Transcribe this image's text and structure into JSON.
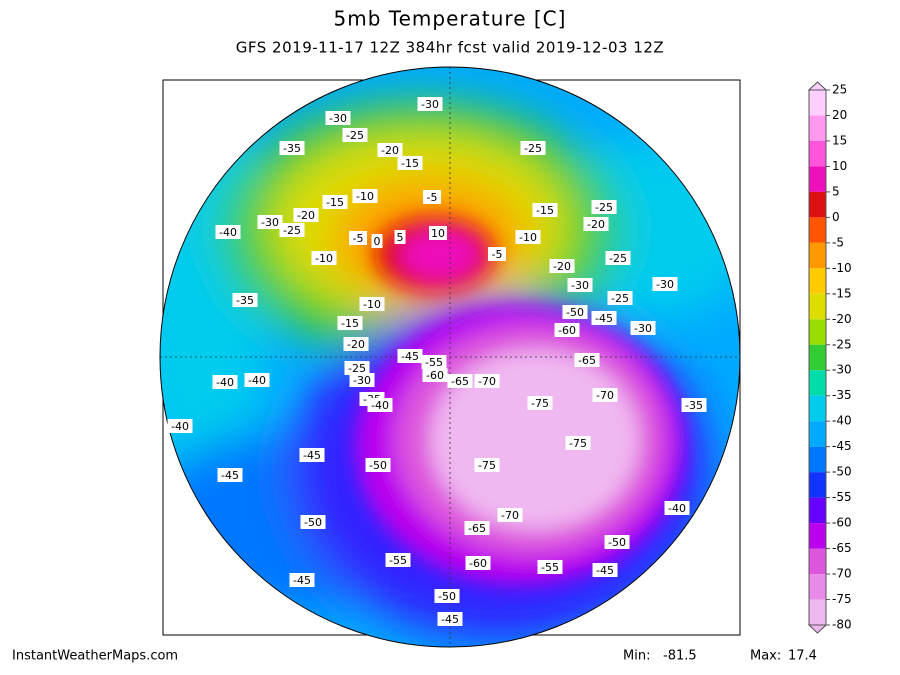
{
  "header": {
    "title": "5mb Temperature [C]",
    "subtitle": "GFS 2019-11-17 12Z 384hr fcst valid 2019-12-03 12Z"
  },
  "colorbar": {
    "ticks": [
      25,
      20,
      15,
      10,
      5,
      0,
      -5,
      -10,
      -15,
      -20,
      -25,
      -30,
      -35,
      -40,
      -45,
      -50,
      -55,
      -60,
      -65,
      -70,
      -75,
      -80
    ],
    "colors": [
      "#ffd0ff",
      "#ff99f0",
      "#ff55dd",
      "#ee11bb",
      "#dd1111",
      "#ff5500",
      "#ff9900",
      "#ffcc00",
      "#dddd00",
      "#99dd00",
      "#33cc33",
      "#00ddaa",
      "#00ccee",
      "#00aaff",
      "#0077ff",
      "#1133ff",
      "#6600ff",
      "#bb00ee",
      "#dd55dd",
      "#e88be8",
      "#f0b8f0"
    ]
  },
  "contour_labels": [
    -30,
    -30,
    -25,
    -35,
    -20,
    -15,
    -25,
    -10,
    -5,
    -15,
    -20,
    -30,
    -25,
    -40,
    -5,
    0,
    5,
    10,
    -15,
    -25,
    -20,
    -10,
    -5,
    -25,
    -10,
    -20,
    -30,
    -30,
    -25,
    -35,
    -10,
    -50,
    -45,
    -30,
    -60,
    -15,
    -20,
    -45,
    -55,
    -65,
    -25,
    -60,
    -65,
    -70,
    -30,
    -40,
    -40,
    -70,
    -35,
    -40,
    -75,
    -35,
    -40,
    -75,
    -45,
    -50,
    -75,
    -45,
    -40,
    -70,
    -50,
    -65,
    -50,
    -55,
    -60,
    -55,
    -45,
    -45,
    -50,
    -45
  ],
  "footer": {
    "source": "InstantWeatherMaps.com",
    "min_label": "Min:",
    "min": -81.5,
    "max_label": "Max:",
    "max": 17.4
  }
}
